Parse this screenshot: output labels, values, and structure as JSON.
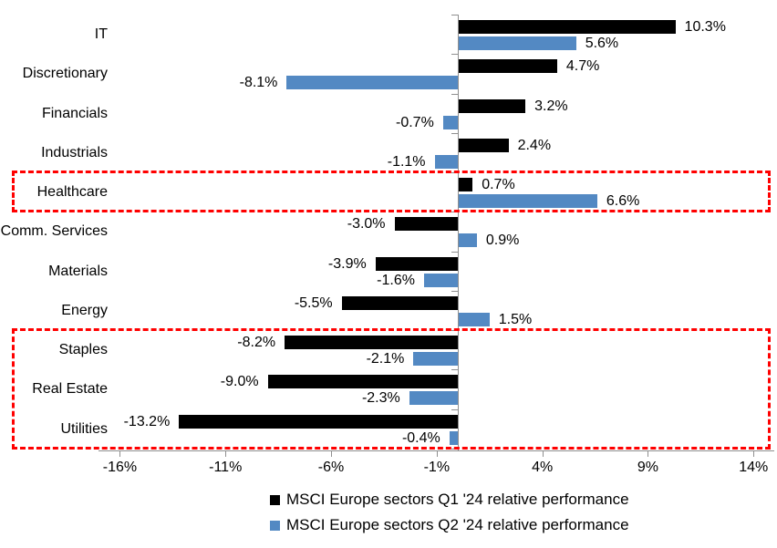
{
  "chart_data": {
    "type": "bar",
    "orientation": "horizontal",
    "title": "",
    "categories": [
      "IT",
      "Discretionary",
      "Financials",
      "Industrials",
      "Healthcare",
      "Comm. Services",
      "Materials",
      "Energy",
      "Staples",
      "Real Estate",
      "Utilities"
    ],
    "series": [
      {
        "name": "MSCI Europe sectors Q1 '24 relative performance",
        "color": "#000000",
        "values": [
          10.3,
          4.7,
          3.2,
          2.4,
          0.7,
          -3.0,
          -3.9,
          -5.5,
          -8.2,
          -9.0,
          -13.2
        ],
        "value_labels": [
          "10.3%",
          "4.7%",
          "3.2%",
          "2.4%",
          "0.7%",
          "-3.0%",
          "-3.9%",
          "-5.5%",
          "-8.2%",
          "-9.0%",
          "-13.2%"
        ]
      },
      {
        "name": "MSCI Europe sectors Q2 '24 relative performance",
        "color": "#5389C3",
        "values": [
          5.6,
          -8.1,
          -0.7,
          -1.1,
          6.6,
          0.9,
          -1.6,
          1.5,
          -2.1,
          -2.3,
          -0.4
        ],
        "value_labels": [
          "5.6%",
          "-8.1%",
          "-0.7%",
          "-1.1%",
          "6.6%",
          "0.9%",
          "-1.6%",
          "1.5%",
          "-2.1%",
          "-2.3%",
          "-0.4%"
        ]
      }
    ],
    "x_axis": {
      "tick_labels": [
        "-16%",
        "-11%",
        "-6%",
        "-1%",
        "4%",
        "9%",
        "14%"
      ],
      "tick_values": [
        -16,
        -11,
        -6,
        -1,
        4,
        9,
        14
      ],
      "min": -16,
      "max": 14,
      "unit": "%"
    },
    "grid": false,
    "legend_position": "bottom",
    "value_label_format": "one-decimal-percent",
    "highlight_color": "#FF0000",
    "highlights": [
      {
        "rows": [
          "Healthcare"
        ],
        "style": "dashed"
      },
      {
        "rows": [
          "Staples",
          "Real Estate",
          "Utilities"
        ],
        "style": "dashed"
      }
    ]
  }
}
